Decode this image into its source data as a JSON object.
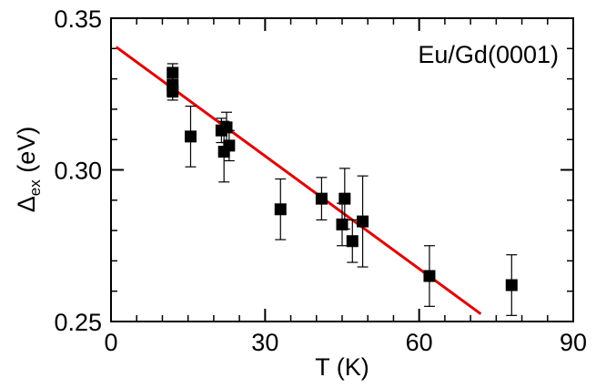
{
  "chart_data": {
    "type": "scatter",
    "title": "",
    "annotation": "Eu/Gd(0001)",
    "xlabel": "T (K)",
    "ylabel_main": "Δ",
    "ylabel_sub": "ex",
    "ylabel_unit": " (eV)",
    "xlim": [
      0,
      90
    ],
    "ylim": [
      0.25,
      0.35
    ],
    "xticks": [
      0,
      30,
      60,
      90
    ],
    "xtick_labels": [
      "0",
      "30",
      "60",
      "90"
    ],
    "yticks": [
      0.25,
      0.3,
      0.35
    ],
    "ytick_labels": [
      "0.25",
      "0.30",
      "0.35"
    ],
    "x_minor_step": 5,
    "y_minor_step": 0.01,
    "grid": false,
    "points": [
      {
        "x": 12.0,
        "y": 0.332,
        "err": 0.003
      },
      {
        "x": 12.0,
        "y": 0.328,
        "err": 0.004
      },
      {
        "x": 12.0,
        "y": 0.326,
        "err": 0.003
      },
      {
        "x": 15.5,
        "y": 0.311,
        "err": 0.01
      },
      {
        "x": 21.5,
        "y": 0.313,
        "err": 0.004
      },
      {
        "x": 22.0,
        "y": 0.306,
        "err": 0.01
      },
      {
        "x": 22.5,
        "y": 0.314,
        "err": 0.005
      },
      {
        "x": 23.0,
        "y": 0.308,
        "err": 0.005
      },
      {
        "x": 33.0,
        "y": 0.287,
        "err": 0.01
      },
      {
        "x": 41.0,
        "y": 0.2905,
        "err": 0.007
      },
      {
        "x": 45.0,
        "y": 0.282,
        "err": 0.007
      },
      {
        "x": 45.5,
        "y": 0.2905,
        "err": 0.01
      },
      {
        "x": 47.0,
        "y": 0.2765,
        "err": 0.007
      },
      {
        "x": 49.0,
        "y": 0.283,
        "err": 0.015
      },
      {
        "x": 62.0,
        "y": 0.265,
        "err": 0.01
      },
      {
        "x": 78.0,
        "y": 0.262,
        "err": 0.01
      }
    ],
    "fit_line": {
      "x": [
        1,
        72
      ],
      "y": [
        0.3405,
        0.2525
      ],
      "color": "#e00000"
    },
    "marker_color": "#000000"
  }
}
